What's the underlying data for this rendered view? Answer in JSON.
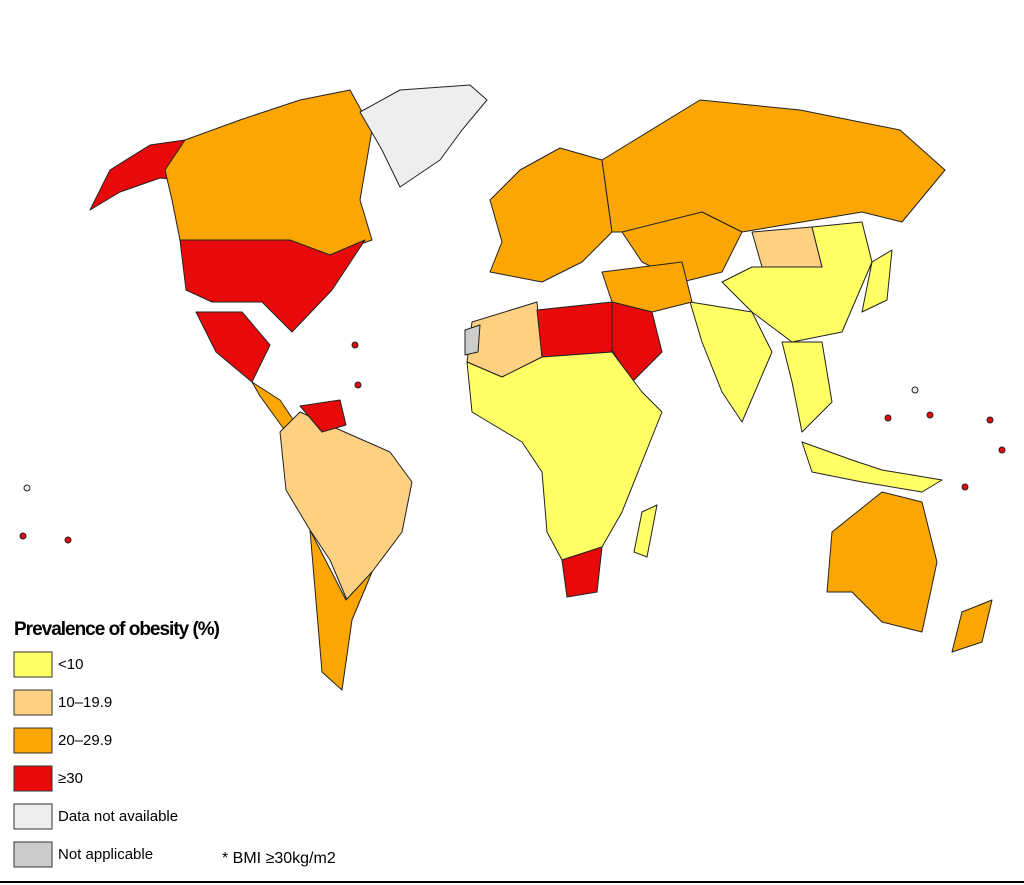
{
  "legend": {
    "title": "Prevalence of obesity (%)",
    "items": [
      {
        "label": "<10",
        "color": "#ffff66"
      },
      {
        "label": "10–19.9",
        "color": "#fdd082"
      },
      {
        "label": "20–29.9",
        "color": "#fba602"
      },
      {
        "label": "≥30",
        "color": "#e80a0a"
      },
      {
        "label": "Data not available",
        "color": "#eeeeee"
      },
      {
        "label": "Not applicable",
        "color": "#cccccc"
      }
    ]
  },
  "footnote": "* BMI ≥30kg/m2"
}
